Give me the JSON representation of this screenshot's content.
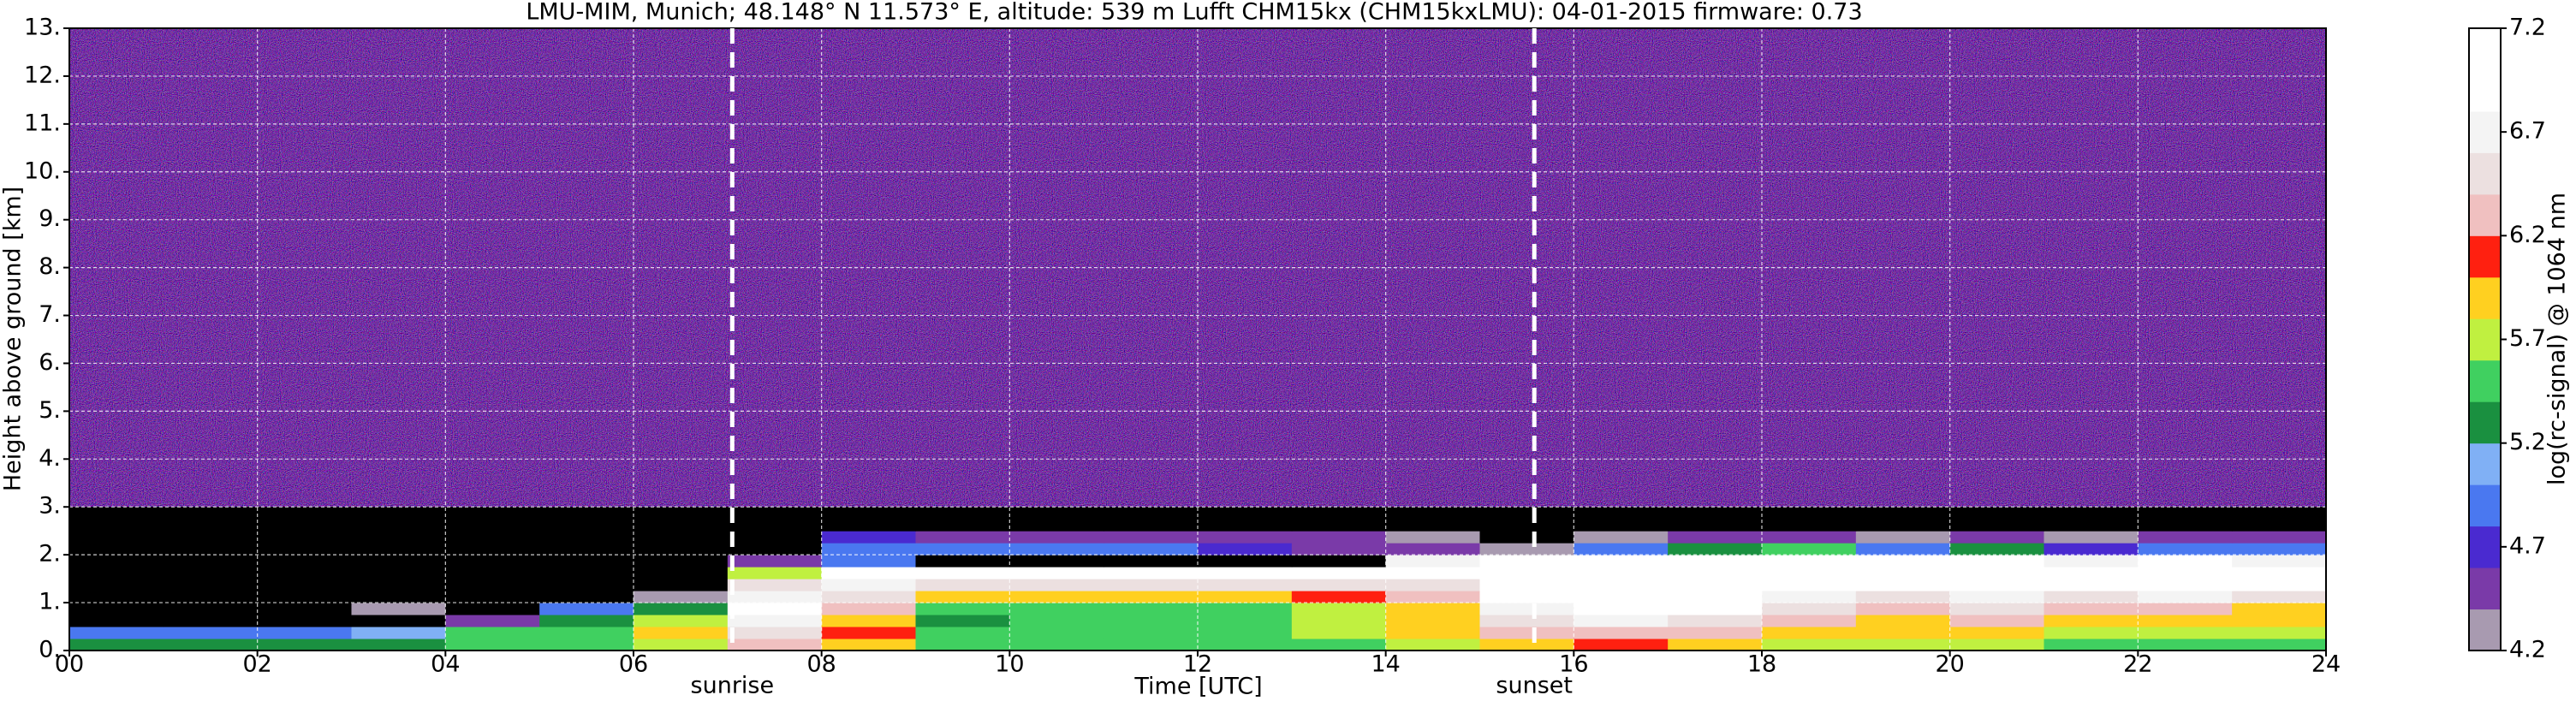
{
  "chart_data": {
    "type": "heatmap",
    "title": "LMU-MIM, Munich; 48.148° N 11.573° E, altitude: 539 m    Lufft CHM15kx (CHM15kxLMU): 04-01-2015    firmware: 0.73",
    "x_label": "Time [UTC]",
    "y_label": "Height above ground [km]",
    "xlim": [
      0,
      24
    ],
    "ylim": [
      0,
      13
    ],
    "xticks": [
      {
        "value": 0,
        "label": "00"
      },
      {
        "value": 2,
        "label": "02"
      },
      {
        "value": 4,
        "label": "04"
      },
      {
        "value": 6,
        "label": "06"
      },
      {
        "value": 8,
        "label": "08"
      },
      {
        "value": 10,
        "label": "10"
      },
      {
        "value": 12,
        "label": "12"
      },
      {
        "value": 14,
        "label": "14"
      },
      {
        "value": 16,
        "label": "16"
      },
      {
        "value": 18,
        "label": "18"
      },
      {
        "value": 20,
        "label": "20"
      },
      {
        "value": 22,
        "label": "22"
      },
      {
        "value": 24,
        "label": "24"
      }
    ],
    "yticks": [
      {
        "value": 0,
        "label": "0."
      },
      {
        "value": 1,
        "label": "1."
      },
      {
        "value": 2,
        "label": "2."
      },
      {
        "value": 3,
        "label": "3."
      },
      {
        "value": 4,
        "label": "4."
      },
      {
        "value": 5,
        "label": "5."
      },
      {
        "value": 6,
        "label": "6."
      },
      {
        "value": 7,
        "label": "7."
      },
      {
        "value": 8,
        "label": "8."
      },
      {
        "value": 9,
        "label": "9."
      },
      {
        "value": 10,
        "label": "10."
      },
      {
        "value": 11,
        "label": "11."
      },
      {
        "value": 12,
        "label": "12."
      },
      {
        "value": 13,
        "label": "13."
      }
    ],
    "grid": true,
    "x_bins": [
      0,
      1,
      2,
      3,
      4,
      5,
      6,
      7,
      8,
      9,
      10,
      11,
      12,
      13,
      14,
      15,
      16,
      17,
      18,
      19,
      20,
      21,
      22,
      23,
      24
    ],
    "y_bins": [
      0,
      0.25,
      0.5,
      0.75,
      1.0,
      1.25,
      1.5,
      1.75,
      2.0,
      2.25,
      2.5,
      3.0
    ],
    "z": [
      [
        5.3,
        5.3,
        5.3,
        5.3,
        5.4,
        5.5,
        5.8,
        6.2,
        6.0,
        5.5,
        5.4,
        5.4,
        5.5,
        5.6,
        5.8,
        6.0,
        6.1,
        6.0,
        5.8,
        5.7,
        5.8,
        5.6,
        5.6,
        5.5
      ],
      [
        5.0,
        4.9,
        4.9,
        5.1,
        5.4,
        5.6,
        6.0,
        6.5,
        6.1,
        5.5,
        5.4,
        5.4,
        5.5,
        5.7,
        5.9,
        6.2,
        6.3,
        6.3,
        6.0,
        5.9,
        6.0,
        5.8,
        5.8,
        5.7
      ],
      [
        3.9,
        3.9,
        3.9,
        4.1,
        4.6,
        5.2,
        5.8,
        6.8,
        6.0,
        5.3,
        5.4,
        5.4,
        5.5,
        5.7,
        5.9,
        6.5,
        6.8,
        6.6,
        6.2,
        6.0,
        6.2,
        6.0,
        6.0,
        5.9
      ],
      [
        3.9,
        3.9,
        3.9,
        4.3,
        4.0,
        4.9,
        5.3,
        7.0,
        6.2,
        5.5,
        5.5,
        5.5,
        5.6,
        5.8,
        6.0,
        6.8,
        7.0,
        6.9,
        6.5,
        6.2,
        6.4,
        6.2,
        6.2,
        6.0
      ],
      [
        3.9,
        3.9,
        3.9,
        3.9,
        3.9,
        4.0,
        4.3,
        6.8,
        6.4,
        6.0,
        6.0,
        6.0,
        6.0,
        6.1,
        6.2,
        7.0,
        7.1,
        7.0,
        6.8,
        6.6,
        6.8,
        6.5,
        6.8,
        6.6
      ],
      [
        3.9,
        3.9,
        3.9,
        3.9,
        3.9,
        3.9,
        3.9,
        6.5,
        6.7,
        6.6,
        6.6,
        6.6,
        6.5,
        6.4,
        6.5,
        7.1,
        7.1,
        7.1,
        7.0,
        7.0,
        7.1,
        6.9,
        7.0,
        7.0
      ],
      [
        3.9,
        3.9,
        3.9,
        3.9,
        3.9,
        3.9,
        3.9,
        5.8,
        7.1,
        7.1,
        7.1,
        7.1,
        7.0,
        7.0,
        7.1,
        7.1,
        7.1,
        7.0,
        7.0,
        7.1,
        6.9,
        7.0,
        6.9,
        6.9
      ],
      [
        3.9,
        3.9,
        3.9,
        3.9,
        3.9,
        3.9,
        3.9,
        4.5,
        5.0,
        4.0,
        4.0,
        4.0,
        4.0,
        4.1,
        6.8,
        6.9,
        7.0,
        6.9,
        7.0,
        7.0,
        7.1,
        6.8,
        7.0,
        6.8
      ],
      [
        3.9,
        3.9,
        3.9,
        3.9,
        3.9,
        3.9,
        3.9,
        3.9,
        5.0,
        4.9,
        4.9,
        4.9,
        4.8,
        4.6,
        4.5,
        4.3,
        5.0,
        5.2,
        5.5,
        5.0,
        5.2,
        4.8,
        4.9,
        5.0
      ],
      [
        3.9,
        3.9,
        3.9,
        3.9,
        3.9,
        3.9,
        3.9,
        3.9,
        4.7,
        4.6,
        4.6,
        4.6,
        4.5,
        4.4,
        4.3,
        4.0,
        4.3,
        4.4,
        4.5,
        4.3,
        4.5,
        4.3,
        4.4,
        4.4
      ],
      [
        3.9,
        3.9,
        3.9,
        3.9,
        3.9,
        3.9,
        3.9,
        3.9,
        3.9,
        3.9,
        3.9,
        3.9,
        3.9,
        3.9,
        3.9,
        3.9,
        3.9,
        3.9,
        3.9,
        3.9,
        3.9,
        3.9,
        3.9,
        3.9
      ]
    ],
    "under_color": "#000000",
    "colorbar_label": "log(rc-signal) @ 1064 nm",
    "clim": [
      4.2,
      7.2
    ],
    "colorbar_ticks": [
      4.2,
      4.7,
      5.2,
      5.7,
      6.2,
      6.7,
      7.2
    ],
    "colors": [
      "#a89ab0",
      "#7a3aa8",
      "#4a2ad0",
      "#4a78f0",
      "#80b0f5",
      "#1a9040",
      "#40d060",
      "#c0f040",
      "#ffd020",
      "#ff2010",
      "#f0c0c0",
      "#ece0e0",
      "#f4f4f4",
      "#ffffff",
      "#ffffff"
    ],
    "annotations": [
      {
        "x": 7.05,
        "text": "sunrise"
      },
      {
        "x": 15.58,
        "text": "sunset"
      }
    ]
  }
}
